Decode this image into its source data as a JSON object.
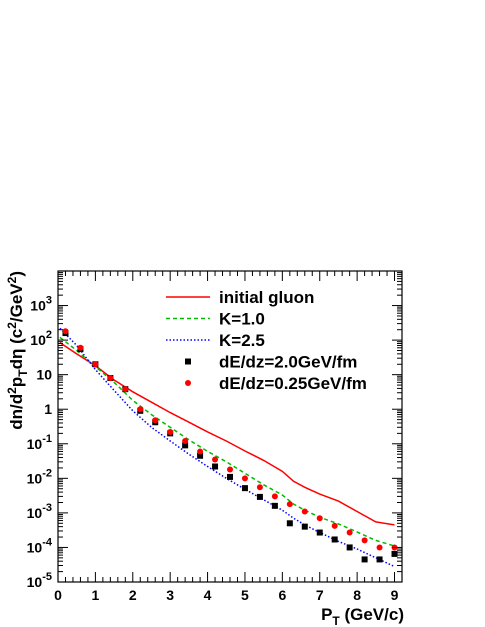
{
  "chart_data": {
    "type": "line",
    "title": "",
    "xlabel": "P_T (GeV/c)",
    "ylabel": "dn/d²p_T dη (c²/GeV²)",
    "xlim": [
      0,
      9.2
    ],
    "ylim": [
      1e-05,
      10000
    ],
    "y_scale": "log",
    "grid": false,
    "legend_position": "top-right",
    "x_ticks": [
      {
        "v": 0,
        "label": "0"
      },
      {
        "v": 1,
        "label": "1"
      },
      {
        "v": 2,
        "label": "2"
      },
      {
        "v": 3,
        "label": "3"
      },
      {
        "v": 4,
        "label": "4"
      },
      {
        "v": 5,
        "label": "5"
      },
      {
        "v": 6,
        "label": "6"
      },
      {
        "v": 7,
        "label": "7"
      },
      {
        "v": 8,
        "label": "8"
      },
      {
        "v": 9,
        "label": "9"
      }
    ],
    "y_ticks": [
      {
        "v": 1e-05,
        "base": "10",
        "exp": "-5"
      },
      {
        "v": 0.0001,
        "base": "10",
        "exp": "-4"
      },
      {
        "v": 0.001,
        "base": "10",
        "exp": "-3"
      },
      {
        "v": 0.01,
        "base": "10",
        "exp": "-2"
      },
      {
        "v": 0.1,
        "base": "10",
        "exp": "-1"
      },
      {
        "v": 1,
        "base": "1",
        "exp": ""
      },
      {
        "v": 10,
        "base": "10",
        "exp": ""
      },
      {
        "v": 100,
        "base": "10",
        "exp": "2"
      },
      {
        "v": 1000,
        "base": "10",
        "exp": "3"
      }
    ],
    "series": [
      {
        "name": "initial gluon",
        "kind": "line",
        "color": "#ff0000",
        "dash": "",
        "x": [
          0.05,
          0.5,
          1.0,
          1.5,
          2.0,
          2.5,
          3.0,
          3.5,
          4.0,
          4.5,
          5.0,
          5.5,
          6.0,
          6.3,
          6.6,
          7.0,
          7.5,
          8.0,
          8.5,
          9.0
        ],
        "y": [
          85,
          40,
          18,
          7,
          3.2,
          1.6,
          0.8,
          0.42,
          0.22,
          0.12,
          0.062,
          0.033,
          0.016,
          0.0082,
          0.0055,
          0.0035,
          0.0022,
          0.0011,
          0.00055,
          0.00045
        ]
      },
      {
        "name": "K=1.0",
        "kind": "line",
        "color": "#00bb00",
        "dash": "4,3",
        "x": [
          0.05,
          0.5,
          1.0,
          1.5,
          2.0,
          2.5,
          3.0,
          3.5,
          4.0,
          4.5,
          5.0,
          5.5,
          6.0,
          6.3,
          6.6,
          7.0,
          7.5,
          8.0,
          8.5,
          9.0
        ],
        "y": [
          120,
          50,
          17,
          6,
          1.8,
          0.7,
          0.3,
          0.13,
          0.06,
          0.03,
          0.014,
          0.0065,
          0.0033,
          0.0018,
          0.0012,
          0.00075,
          0.00048,
          0.00028,
          0.00016,
          0.00011
        ]
      },
      {
        "name": "K=2.5",
        "kind": "line",
        "color": "#0000ff",
        "dash": "1.5,2",
        "x": [
          0.05,
          0.5,
          1.0,
          1.5,
          2.0,
          2.5,
          3.0,
          3.5,
          4.0,
          4.5,
          5.0,
          5.5,
          6.0,
          6.3,
          6.6,
          7.0,
          7.5,
          8.0,
          8.5,
          9.0
        ],
        "y": [
          220,
          70,
          14,
          3.5,
          0.9,
          0.3,
          0.12,
          0.05,
          0.022,
          0.01,
          0.0048,
          0.0024,
          0.0012,
          0.0007,
          0.00045,
          0.00027,
          0.00015,
          9e-05,
          5e-05,
          2.8e-05
        ]
      },
      {
        "name": "dE/dz=2.0GeV/fm",
        "kind": "marker",
        "marker": "square",
        "color": "#000000",
        "x": [
          0.2,
          0.6,
          1.0,
          1.4,
          1.8,
          2.2,
          2.6,
          3.0,
          3.4,
          3.8,
          4.2,
          4.6,
          5.0,
          5.4,
          5.8,
          6.2,
          6.6,
          7.0,
          7.4,
          7.8,
          8.2,
          8.6,
          9.0
        ],
        "y": [
          160,
          55,
          20,
          8,
          3.8,
          0.9,
          0.42,
          0.2,
          0.09,
          0.045,
          0.022,
          0.011,
          0.0052,
          0.0029,
          0.0016,
          0.0005,
          0.0004,
          0.00027,
          0.00017,
          0.0001,
          4.5e-05,
          4.5e-05,
          6.5e-05
        ]
      },
      {
        "name": "dE/dz=0.25GeV/fm",
        "kind": "marker",
        "marker": "circle",
        "color": "#ff0000",
        "x": [
          0.2,
          0.6,
          1.0,
          1.4,
          1.8,
          2.2,
          2.6,
          3.0,
          3.4,
          3.8,
          4.2,
          4.6,
          5.0,
          5.4,
          5.8,
          6.2,
          6.6,
          7.0,
          7.4,
          7.8,
          8.2,
          8.6,
          9.0
        ],
        "y": [
          180,
          60,
          20,
          8,
          3.8,
          1.0,
          0.48,
          0.22,
          0.12,
          0.06,
          0.035,
          0.018,
          0.01,
          0.0055,
          0.003,
          0.0018,
          0.0011,
          0.0007,
          0.00042,
          0.00027,
          0.00016,
          0.0001,
          0.0001
        ]
      }
    ]
  }
}
